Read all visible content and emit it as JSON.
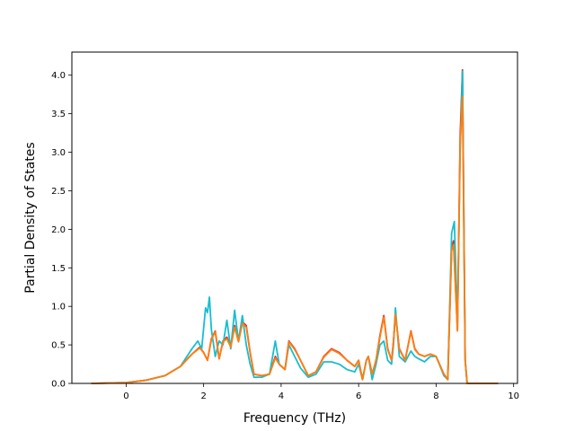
{
  "chart_data": {
    "type": "line",
    "title": "",
    "xlabel": "Frequency (THz)",
    "ylabel": "Partial Density of States",
    "xlim": [
      -1.4,
      10.1
    ],
    "ylim": [
      0.0,
      4.3
    ],
    "xticks": [
      0,
      2,
      4,
      6,
      8,
      10
    ],
    "xtick_labels": [
      "0",
      "2",
      "4",
      "6",
      "8",
      "10"
    ],
    "yticks": [
      0.0,
      0.5,
      1.0,
      1.5,
      2.0,
      2.5,
      3.0,
      3.5,
      4.0
    ],
    "ytick_labels": [
      "0.0",
      "0.5",
      "1.0",
      "1.5",
      "2.0",
      "2.5",
      "3.0",
      "3.5",
      "4.0"
    ],
    "grid": false,
    "legend": "none",
    "series": [
      {
        "color": "#d62728",
        "x": [
          -0.9,
          0.0,
          0.5,
          1.0,
          1.4,
          1.7,
          1.9,
          2.0,
          2.1,
          2.2,
          2.3,
          2.4,
          2.5,
          2.6,
          2.7,
          2.8,
          2.9,
          3.0,
          3.1,
          3.2,
          3.3,
          3.5,
          3.7,
          3.85,
          3.95,
          4.1,
          4.2,
          4.35,
          4.5,
          4.7,
          4.9,
          5.1,
          5.3,
          5.5,
          5.7,
          5.9,
          6.0,
          6.1,
          6.2,
          6.25,
          6.35,
          6.45,
          6.55,
          6.65,
          6.75,
          6.85,
          6.9,
          6.95,
          7.05,
          7.2,
          7.35,
          7.45,
          7.55,
          7.7,
          7.85,
          8.0,
          8.2,
          8.3,
          8.4,
          8.45,
          8.55,
          8.62,
          8.68,
          8.75,
          8.8,
          9.6
        ],
        "y": [
          0.0,
          0.01,
          0.04,
          0.1,
          0.22,
          0.38,
          0.47,
          0.4,
          0.3,
          0.58,
          0.68,
          0.32,
          0.55,
          0.6,
          0.48,
          0.75,
          0.55,
          0.8,
          0.75,
          0.4,
          0.12,
          0.1,
          0.12,
          0.35,
          0.25,
          0.18,
          0.55,
          0.45,
          0.3,
          0.1,
          0.15,
          0.35,
          0.45,
          0.4,
          0.3,
          0.22,
          0.3,
          0.05,
          0.3,
          0.35,
          0.12,
          0.3,
          0.62,
          0.88,
          0.45,
          0.3,
          0.55,
          0.9,
          0.45,
          0.3,
          0.68,
          0.45,
          0.38,
          0.35,
          0.38,
          0.35,
          0.12,
          0.05,
          1.75,
          1.85,
          0.7,
          3.2,
          4.07,
          0.3,
          0.0,
          0.0
        ]
      },
      {
        "color": "#17becf",
        "x": [
          -0.9,
          0.0,
          0.5,
          1.0,
          1.4,
          1.7,
          1.85,
          1.95,
          2.05,
          2.1,
          2.15,
          2.2,
          2.3,
          2.4,
          2.5,
          2.6,
          2.7,
          2.8,
          2.9,
          3.0,
          3.1,
          3.2,
          3.3,
          3.5,
          3.7,
          3.85,
          3.95,
          4.1,
          4.2,
          4.35,
          4.5,
          4.7,
          4.9,
          5.1,
          5.3,
          5.5,
          5.7,
          5.9,
          6.0,
          6.1,
          6.2,
          6.25,
          6.35,
          6.45,
          6.55,
          6.65,
          6.75,
          6.85,
          6.9,
          6.95,
          7.05,
          7.2,
          7.35,
          7.45,
          7.55,
          7.7,
          7.85,
          8.0,
          8.2,
          8.3,
          8.4,
          8.47,
          8.55,
          8.62,
          8.68,
          8.75,
          8.8,
          9.6
        ],
        "y": [
          0.0,
          0.01,
          0.04,
          0.1,
          0.22,
          0.45,
          0.55,
          0.45,
          0.98,
          0.92,
          1.12,
          0.7,
          0.35,
          0.55,
          0.5,
          0.82,
          0.45,
          0.95,
          0.55,
          0.88,
          0.5,
          0.25,
          0.08,
          0.08,
          0.12,
          0.55,
          0.25,
          0.18,
          0.5,
          0.35,
          0.2,
          0.08,
          0.12,
          0.28,
          0.28,
          0.25,
          0.18,
          0.15,
          0.25,
          0.05,
          0.3,
          0.35,
          0.05,
          0.25,
          0.5,
          0.55,
          0.3,
          0.25,
          0.5,
          0.98,
          0.35,
          0.28,
          0.42,
          0.35,
          0.32,
          0.28,
          0.35,
          0.35,
          0.1,
          0.05,
          1.95,
          2.1,
          0.8,
          3.0,
          4.05,
          0.3,
          0.0,
          0.0
        ]
      },
      {
        "color": "#ff7f0e",
        "x": [
          -0.9,
          0.0,
          0.5,
          1.0,
          1.4,
          1.7,
          1.9,
          2.0,
          2.1,
          2.2,
          2.3,
          2.4,
          2.5,
          2.6,
          2.7,
          2.8,
          2.9,
          3.0,
          3.1,
          3.2,
          3.3,
          3.5,
          3.7,
          3.85,
          3.95,
          4.1,
          4.2,
          4.35,
          4.5,
          4.7,
          4.9,
          5.1,
          5.3,
          5.5,
          5.7,
          5.9,
          6.0,
          6.1,
          6.2,
          6.25,
          6.35,
          6.45,
          6.55,
          6.65,
          6.75,
          6.85,
          6.9,
          6.95,
          7.05,
          7.2,
          7.35,
          7.45,
          7.55,
          7.7,
          7.85,
          8.0,
          8.2,
          8.3,
          8.4,
          8.45,
          8.55,
          8.62,
          8.68,
          8.75,
          8.8,
          9.6
        ],
        "y": [
          0.0,
          0.01,
          0.04,
          0.1,
          0.22,
          0.38,
          0.46,
          0.4,
          0.3,
          0.57,
          0.67,
          0.32,
          0.54,
          0.58,
          0.47,
          0.73,
          0.54,
          0.78,
          0.73,
          0.4,
          0.12,
          0.1,
          0.12,
          0.33,
          0.25,
          0.18,
          0.54,
          0.44,
          0.3,
          0.1,
          0.15,
          0.34,
          0.44,
          0.39,
          0.3,
          0.22,
          0.3,
          0.05,
          0.3,
          0.35,
          0.12,
          0.3,
          0.6,
          0.86,
          0.44,
          0.3,
          0.54,
          0.9,
          0.44,
          0.3,
          0.67,
          0.44,
          0.38,
          0.35,
          0.38,
          0.35,
          0.12,
          0.05,
          1.72,
          1.8,
          0.68,
          3.1,
          3.72,
          0.3,
          0.0,
          0.0
        ]
      }
    ]
  }
}
